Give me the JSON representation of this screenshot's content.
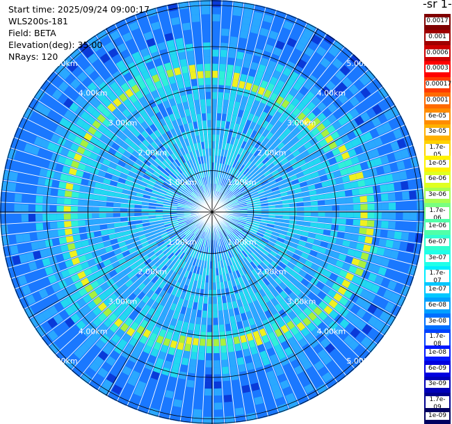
{
  "header": {
    "start_time": "Start time: 2025/09/24 09:00:17",
    "instrument": "WLS200s-181",
    "field": "Field: BETA",
    "elevation": "Elevation(deg): 35.00",
    "nrays": "NRays: 120"
  },
  "colorbar": {
    "title_fragment": "-1 sr-",
    "labels": [
      "0.0017",
      "0.001",
      "0.0006",
      "0.0003",
      "0.00017",
      "0.0001",
      "6e-05",
      "3e-05",
      "1.7e-05",
      "1e-05",
      "6e-06",
      "3e-06",
      "1.7e-06",
      "1e-06",
      "6e-07",
      "3e-07",
      "1.7e-07",
      "1e-07",
      "6e-08",
      "3e-08",
      "1.7e-08",
      "1e-08",
      "6e-09",
      "3e-09",
      "1.7e-09",
      "1e-09"
    ],
    "colors": [
      "#800000",
      "#a00000",
      "#cc0000",
      "#ff0000",
      "#ff3a00",
      "#ff6a00",
      "#ff8c00",
      "#ffb000",
      "#ffd200",
      "#fff200",
      "#e0ff20",
      "#a8ff50",
      "#78ff80",
      "#50ffa8",
      "#30ffd0",
      "#20ffe8",
      "#00eeff",
      "#00c8ff",
      "#00a0ff",
      "#0070ff",
      "#0040ff",
      "#0018ff",
      "#0000e0",
      "#0000b8",
      "#000090",
      "#000060"
    ]
  },
  "plot": {
    "nrays": 120,
    "range_labels": [
      "1.00km",
      "2.00km",
      "3.00km",
      "4.00km",
      "5.00km"
    ],
    "colors": {
      "base": "#1a78ff",
      "light": "#2aa8ff",
      "cyan": "#22d8f0",
      "aqua": "#30f0d8",
      "green": "#a8f040",
      "yellow": "#f0f020",
      "dark": "#0a3ad8"
    }
  }
}
